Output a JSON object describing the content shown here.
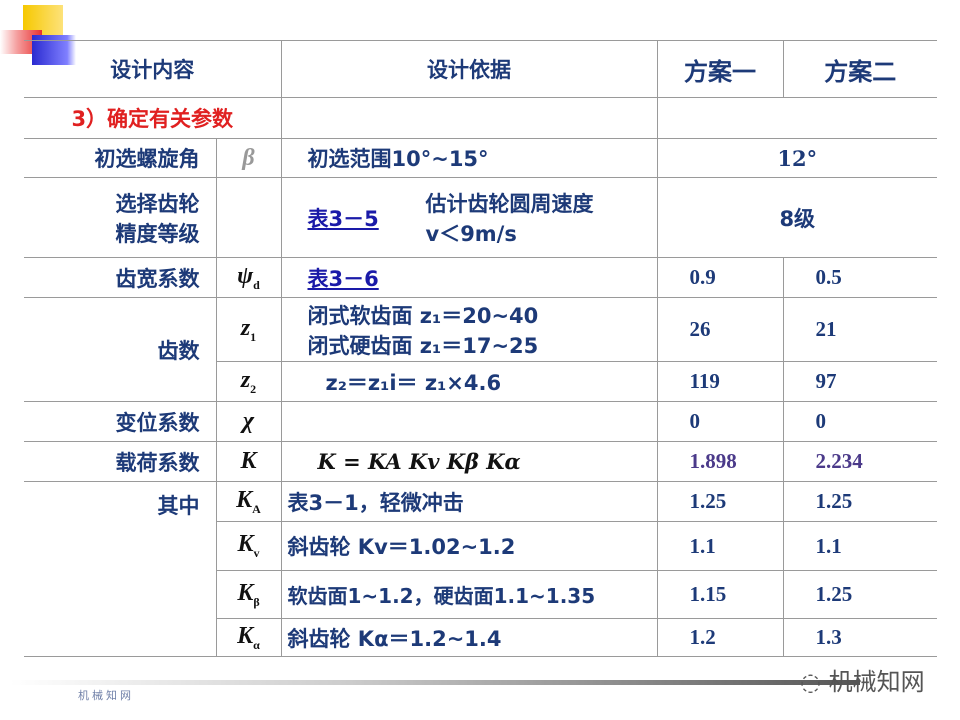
{
  "header": {
    "col1": "设计内容",
    "col2": "设计依据",
    "col3": "方案一",
    "col4": "方案二"
  },
  "section": "3）确定有关参数",
  "rows": {
    "beta": {
      "name": "初选螺旋角",
      "sym": "β",
      "basis": "初选范围10°~15°",
      "value": "12°"
    },
    "grade": {
      "name1": "选择齿轮",
      "name2": "精度等级",
      "link": "表3－5",
      "basis1": "估计齿轮圆周速度",
      "basis2": "v＜9m/s",
      "value": "8级"
    },
    "width": {
      "name": "齿宽系数",
      "sym": "ψ",
      "sub": "d",
      "link": "表3－6",
      "v1": "0.9",
      "v2": "0.5"
    },
    "teeth": {
      "name": "齿数",
      "z1": "z",
      "z1sub": "1",
      "basis1": "闭式软齿面 z₁＝20~40",
      "basis2": "闭式硬齿面 z₁＝17~25",
      "z1v1": "26",
      "z1v2": "21",
      "z2": "z",
      "z2sub": "2",
      "basis3": "z₂＝z₁i＝ z₁×4.6",
      "z2v1": "119",
      "z2v2": "97"
    },
    "shift": {
      "name": "变位系数",
      "sym": "χ",
      "v1": "0",
      "v2": "0"
    },
    "load": {
      "name": "载荷系数",
      "sym": "K",
      "basis": "K = KA Kv Kβ Kα",
      "v1": "1.898",
      "v2": "2.234"
    },
    "ka": {
      "name": "其中",
      "sym": "K",
      "sub": "A",
      "basis": "表3－1，轻微冲击",
      "v1": "1.25",
      "v2": "1.25"
    },
    "kv": {
      "sym": "K",
      "sub": "v",
      "basis": "斜齿轮 Kv＝1.02~1.2",
      "v1": "1.1",
      "v2": "1.1"
    },
    "kb": {
      "sym": "K",
      "sub": "β",
      "basis": "软齿面1~1.2，硬齿面1.1~1.35",
      "v1": "1.15",
      "v2": "1.25"
    },
    "kalpha": {
      "sym": "K",
      "sub": "α",
      "basis": "斜齿轮 Kα＝1.2~1.4",
      "v1": "1.2",
      "v2": "1.3"
    }
  },
  "footer": {
    "label": "机械知网",
    "watermark": "机械知网"
  },
  "colors": {
    "text": "#1d3a78",
    "section": "#e02020",
    "link": "#1a1aa8"
  }
}
